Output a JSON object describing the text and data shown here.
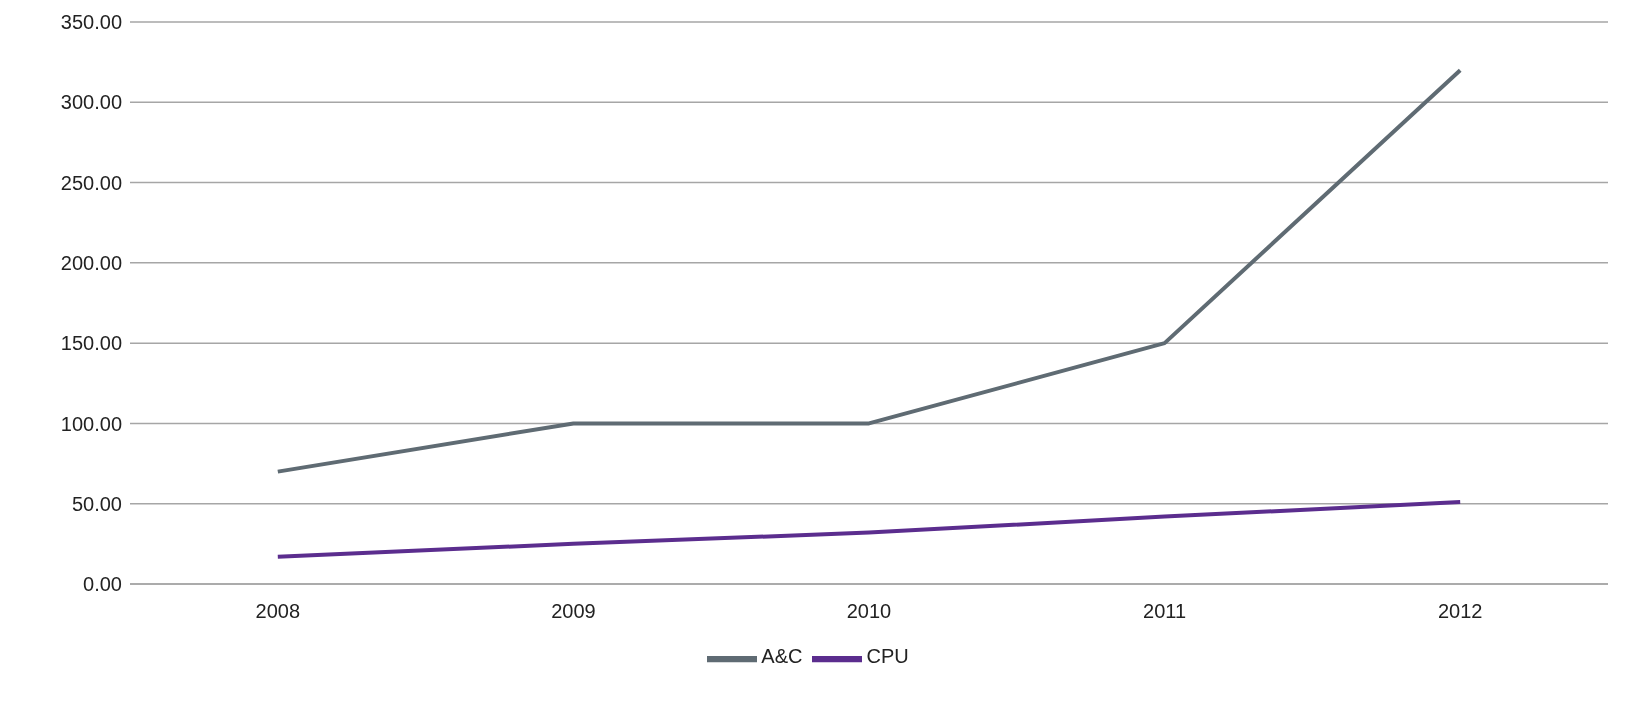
{
  "chart_data": {
    "type": "line",
    "categories": [
      "2008",
      "2009",
      "2010",
      "2011",
      "2012"
    ],
    "series": [
      {
        "name": "A&C",
        "color": "#5f6b73",
        "values": [
          70,
          100,
          100,
          150,
          320
        ]
      },
      {
        "name": "CPU",
        "color": "#5b2d8e",
        "values": [
          17,
          25,
          32,
          42,
          51
        ]
      }
    ],
    "ylim": [
      0,
      350
    ],
    "yticks": [
      {
        "value": 0,
        "label": "0.00"
      },
      {
        "value": 50,
        "label": "50.00"
      },
      {
        "value": 100,
        "label": "100.00"
      },
      {
        "value": 150,
        "label": "150.00"
      },
      {
        "value": 200,
        "label": "200.00"
      },
      {
        "value": 250,
        "label": "250.00"
      },
      {
        "value": 300,
        "label": "300.00"
      },
      {
        "value": 350,
        "label": "350.00"
      }
    ],
    "grid": "y",
    "legend": "bottom",
    "marker": "none",
    "line_style": "solid"
  }
}
